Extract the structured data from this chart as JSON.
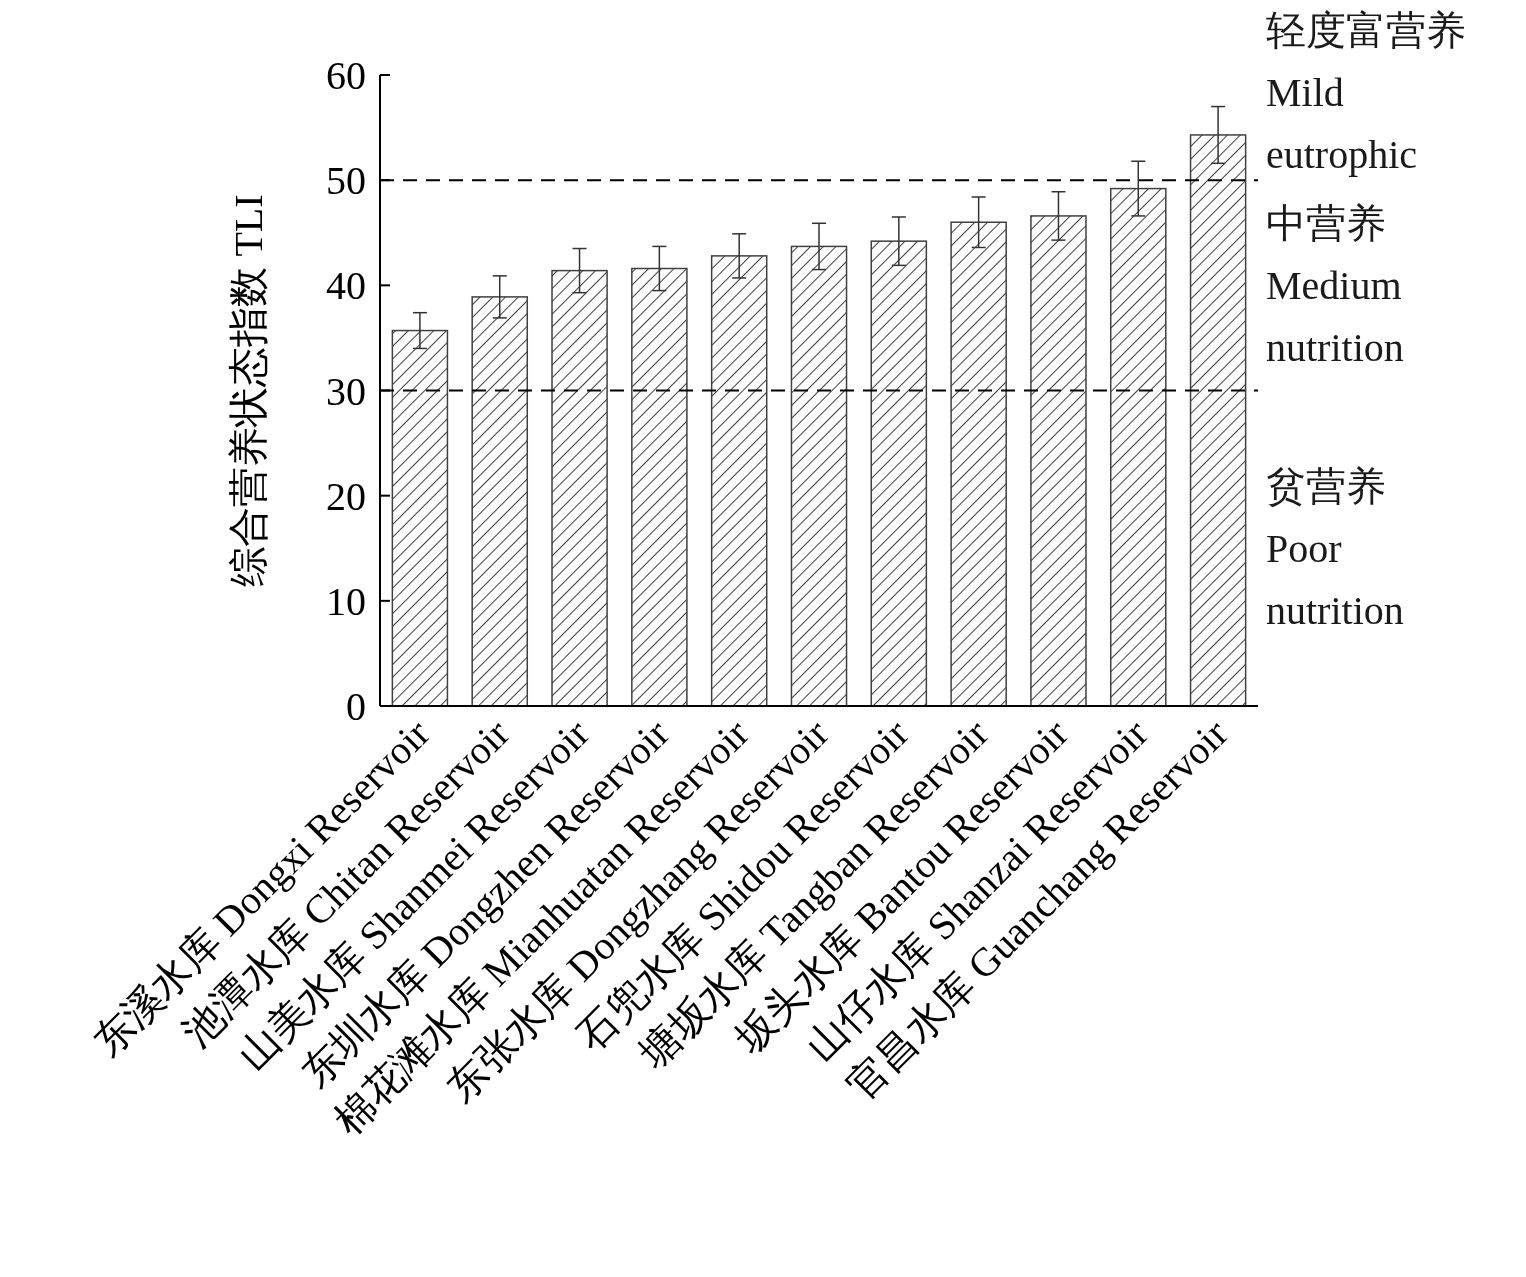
{
  "chart_data": {
    "type": "bar",
    "ylabel": "综合营养状态指数 TLI",
    "categories": [
      "东溪水库 Dongxi Reservoir",
      "池潭水库 Chitan Reservoir",
      "山美水库 Shanmei Reservoir",
      "东圳水库 Dongzhen Reservoir",
      "棉花滩水库 Mianhuatan Reservoir",
      "东张水库 Dongzhang Reservoir",
      "石兜水库 Shidou Reservoir",
      "塘坂水库 Tangban Reservoir",
      "坂头水库 Bantou Reservoir",
      "山仔水库 Shanzai Reservoir",
      "官昌水库 Guanchang Reservoir"
    ],
    "values": [
      35.7,
      38.9,
      41.4,
      41.6,
      42.8,
      43.7,
      44.2,
      46.0,
      46.6,
      49.2,
      54.3
    ],
    "errors": [
      1.7,
      2.0,
      2.1,
      2.1,
      2.1,
      2.2,
      2.3,
      2.4,
      2.3,
      2.6,
      2.7
    ],
    "color": "#404040",
    "ylim": [
      0,
      60
    ],
    "yticks": [
      0,
      10,
      20,
      30,
      40,
      50,
      60
    ],
    "ref_lines": [
      {
        "axis": "y",
        "value": 50,
        "line_style": "dashed"
      },
      {
        "axis": "y",
        "value": 30,
        "line_style": "dashed"
      }
    ],
    "annotations": [
      "轻度富营养\nMild\neutrophic",
      "中营养\nMedium\nnutrition",
      "贫营养\nPoor\nnutrition"
    ]
  }
}
